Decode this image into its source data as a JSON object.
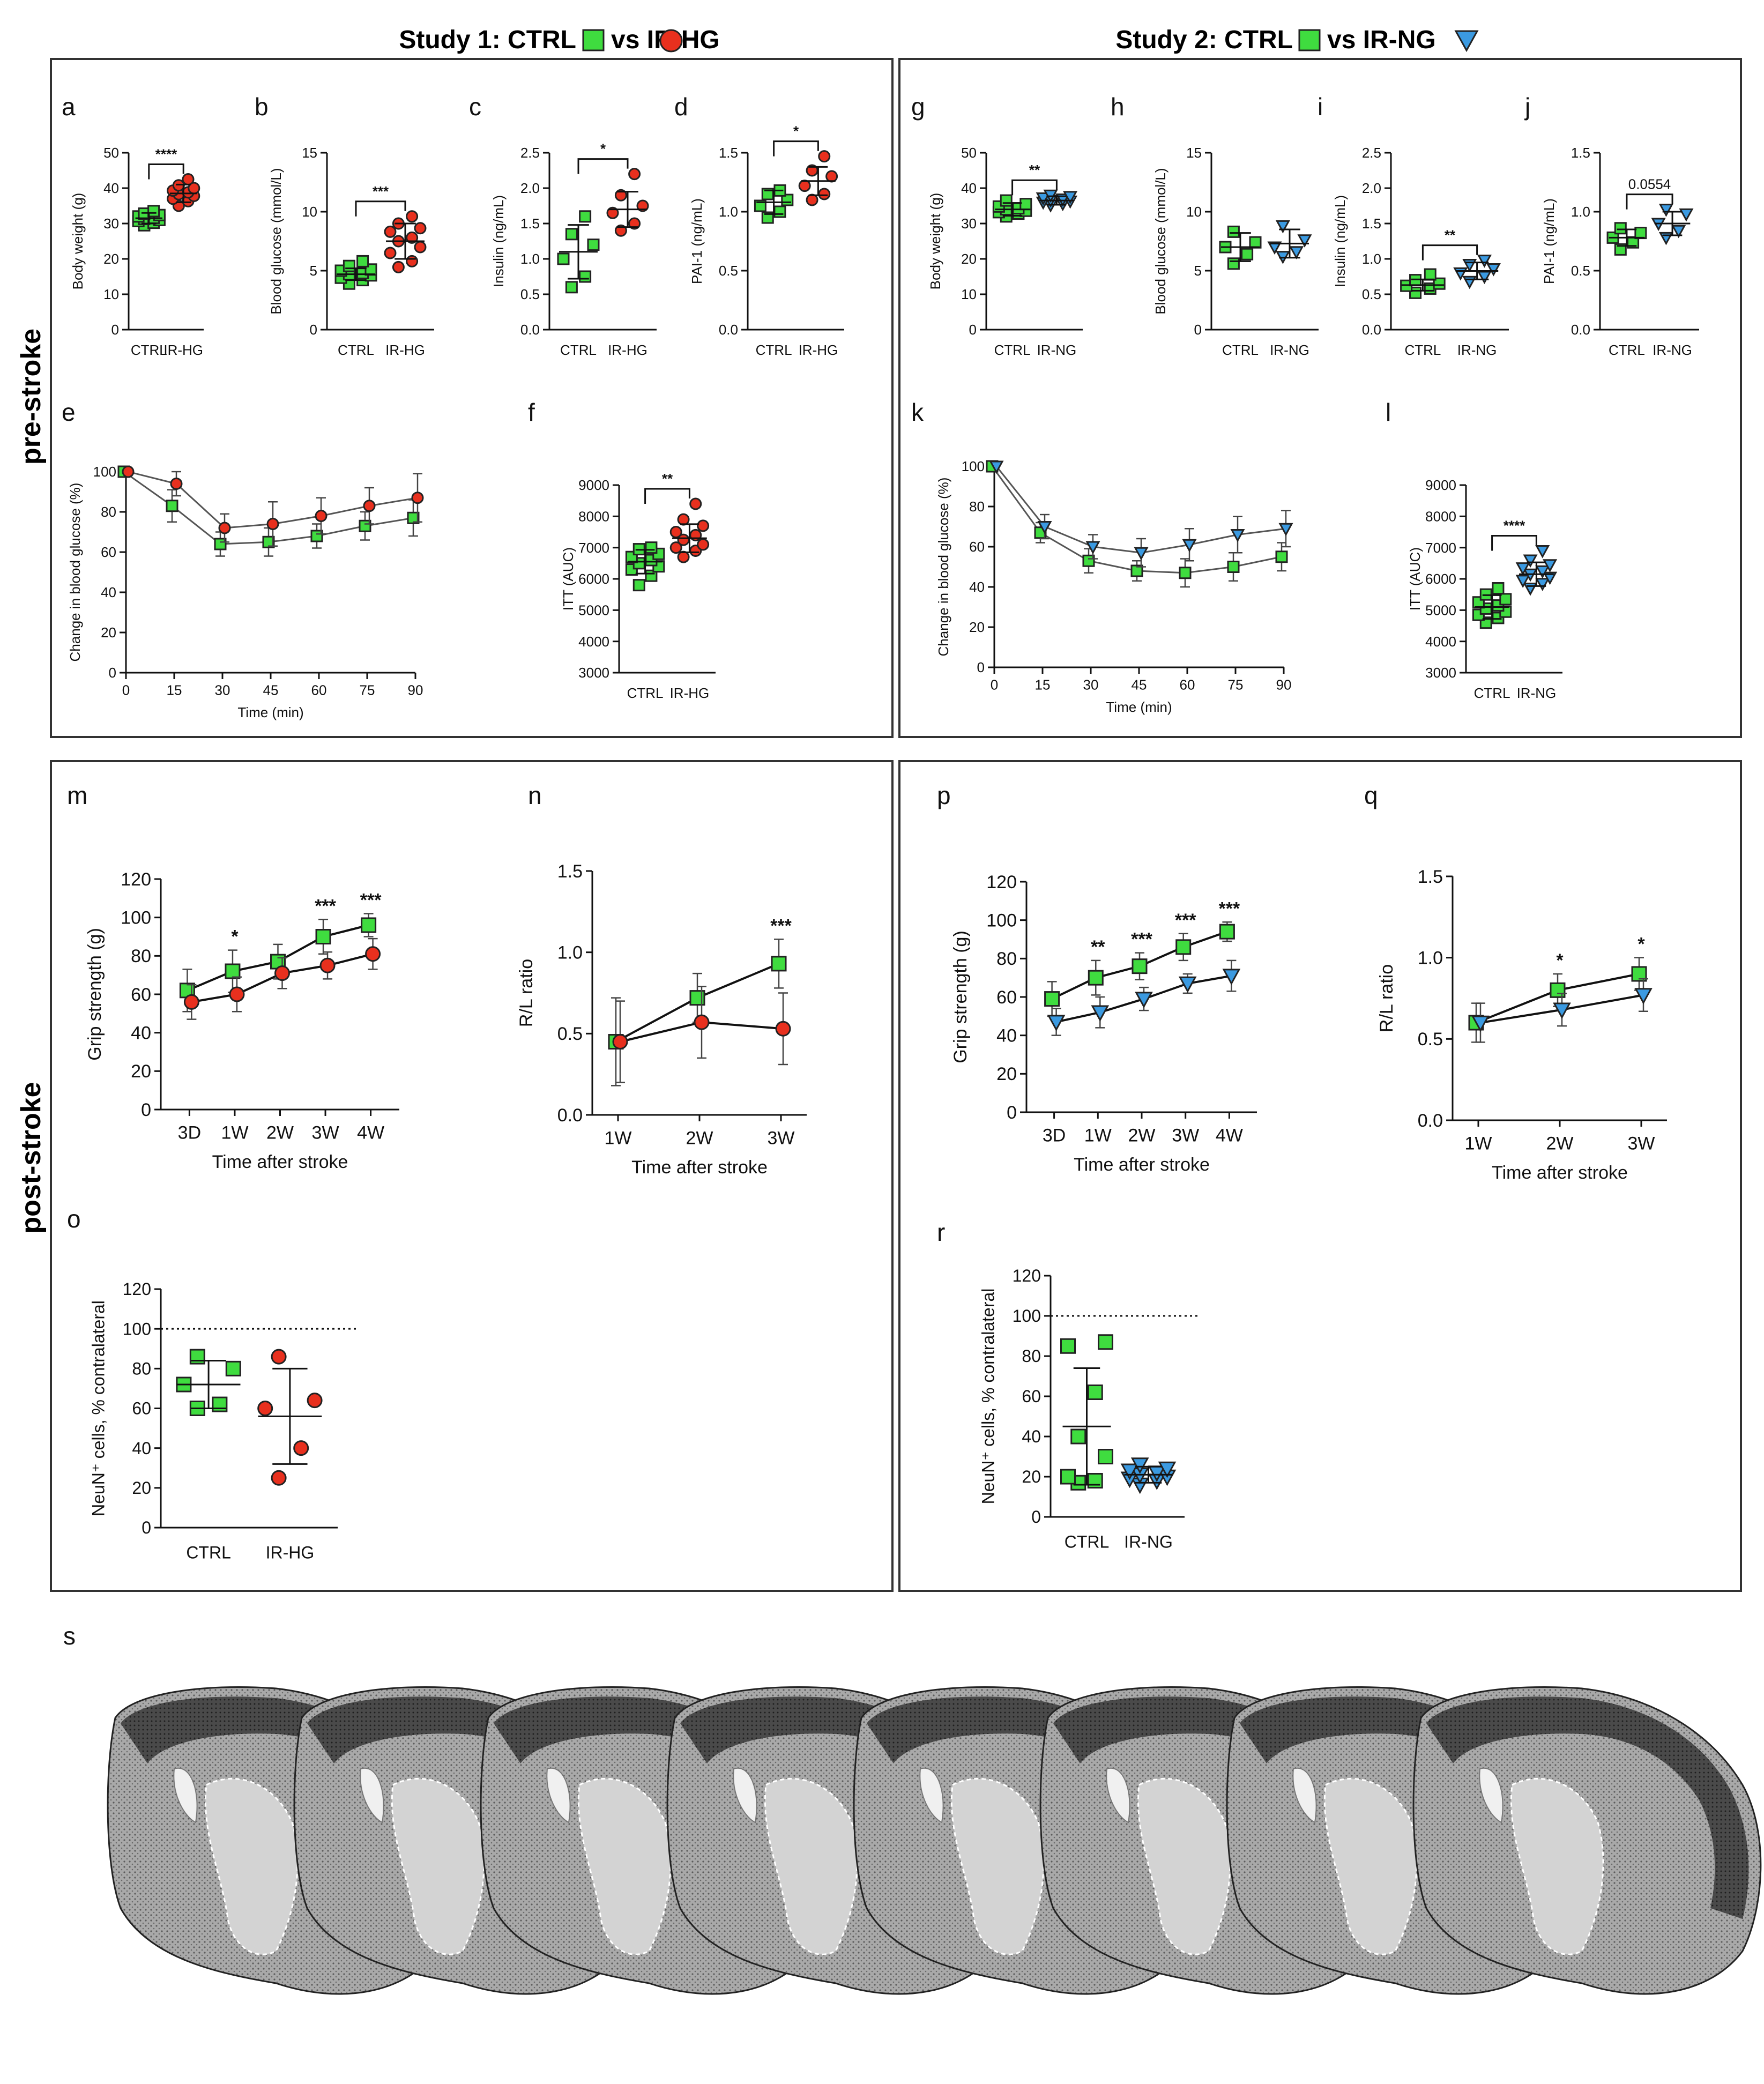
{
  "header": {
    "study1": "Study 1: CTRL",
    "study1_vs": "vs IR-HG",
    "study2": "Study 2: CTRL",
    "study2_vs": "vs IR-NG"
  },
  "row_labels": {
    "pre": "pre-stroke",
    "post": "post-stroke"
  },
  "colors": {
    "ctrl": "#3fdc3f",
    "irhg": "#e8301e",
    "irng": "#3b9ae1",
    "frame": "#333333"
  },
  "panel_s": {
    "label": "s"
  },
  "chart_data": [
    {
      "id": "a",
      "type": "scatter",
      "ylabel": "Body weight (g)",
      "ylim": [
        0,
        50
      ],
      "yticks": [
        0,
        10,
        20,
        30,
        40,
        50
      ],
      "categories": [
        "CTRL",
        "IR-HG"
      ],
      "markers": [
        "ctrl",
        "irhg"
      ],
      "groups": [
        {
          "mean": 31.5,
          "sd": 1.5,
          "points": [
            29.5,
            30.2,
            30.7,
            31,
            31.3,
            31.6,
            32,
            32.4,
            32.8,
            33.5
          ]
        },
        {
          "mean": 38.5,
          "sd": 2.5,
          "points": [
            35,
            36.3,
            37,
            37.8,
            38.3,
            38.8,
            39.3,
            40,
            40.8,
            42.5
          ]
        }
      ],
      "sig": "****"
    },
    {
      "id": "b",
      "type": "scatter",
      "ylabel": "Blood glucose (mmol/L)",
      "ylim": [
        0,
        15
      ],
      "yticks": [
        0,
        5,
        10,
        15
      ],
      "categories": [
        "CTRL",
        "IR-HG"
      ],
      "markers": [
        "ctrl",
        "irhg"
      ],
      "groups": [
        {
          "mean": 4.7,
          "sd": 0.5,
          "points": [
            3.9,
            4.2,
            4.4,
            4.6,
            4.7,
            4.8,
            5,
            5.1,
            5.4,
            5.8
          ]
        },
        {
          "mean": 7.5,
          "sd": 1.5,
          "points": [
            5.3,
            5.8,
            6.5,
            7,
            7.5,
            7.8,
            8.3,
            8.6,
            9,
            9.6
          ]
        }
      ],
      "sig": "***"
    },
    {
      "id": "c",
      "type": "scatter",
      "ylabel": "Insulin (ng/mL)",
      "ylim": [
        0,
        2.5
      ],
      "yticks": [
        0,
        0.5,
        1.0,
        1.5,
        2.0,
        2.5
      ],
      "categories": [
        "CTRL",
        "IR-HG"
      ],
      "markers": [
        "ctrl",
        "irhg"
      ],
      "groups": [
        {
          "mean": 1.1,
          "sd": 0.38,
          "points": [
            0.6,
            0.75,
            1.0,
            1.2,
            1.35,
            1.6
          ]
        },
        {
          "mean": 1.7,
          "sd": 0.25,
          "points": [
            1.4,
            1.5,
            1.65,
            1.75,
            1.9,
            2.2
          ]
        }
      ],
      "sig": "*"
    },
    {
      "id": "d",
      "type": "scatter",
      "ylabel": "PAI-1 (ng/mL)",
      "ylim": [
        0,
        1.5
      ],
      "yticks": [
        0,
        0.5,
        1.0,
        1.5
      ],
      "categories": [
        "CTRL",
        "IR-HG"
      ],
      "markers": [
        "ctrl",
        "irhg"
      ],
      "groups": [
        {
          "mean": 1.08,
          "sd": 0.1,
          "points": [
            0.95,
            1.0,
            1.05,
            1.1,
            1.15,
            1.18
          ]
        },
        {
          "mean": 1.26,
          "sd": 0.12,
          "points": [
            1.1,
            1.15,
            1.22,
            1.3,
            1.35,
            1.47
          ]
        }
      ],
      "sig": "*"
    },
    {
      "id": "g",
      "type": "scatter",
      "ylabel": "Body weight (g)",
      "ylim": [
        0,
        50
      ],
      "yticks": [
        0,
        10,
        20,
        30,
        40,
        50
      ],
      "categories": [
        "CTRL",
        "IR-NG"
      ],
      "markers": [
        "ctrl",
        "irng"
      ],
      "groups": [
        {
          "mean": 34,
          "sd": 1.8,
          "points": [
            32,
            32.8,
            33.2,
            33.6,
            34,
            34.3,
            34.8,
            35.5,
            36.5
          ]
        },
        {
          "mean": 36.5,
          "sd": 1.2,
          "points": [
            35.2,
            35.6,
            36,
            36.3,
            36.6,
            36.9,
            37.2,
            37.6,
            38
          ]
        }
      ],
      "sig": "**"
    },
    {
      "id": "h",
      "type": "scatter",
      "ylabel": "Blood glucose (mmol/L)",
      "ylim": [
        0,
        15
      ],
      "yticks": [
        0,
        5,
        10,
        15
      ],
      "categories": [
        "CTRL",
        "IR-NG"
      ],
      "markers": [
        "ctrl",
        "irng"
      ],
      "groups": [
        {
          "mean": 7.0,
          "sd": 1.2,
          "points": [
            5.6,
            6.4,
            7.0,
            7.4,
            8.3
          ]
        },
        {
          "mean": 7.3,
          "sd": 1.2,
          "points": [
            6.2,
            6.6,
            7.0,
            7.6,
            8.8
          ]
        }
      ],
      "sig": ""
    },
    {
      "id": "i",
      "type": "scatter",
      "ylabel": "Insulin (ng/mL)",
      "ylim": [
        0,
        2.5
      ],
      "yticks": [
        0,
        0.5,
        1.0,
        1.5,
        2.0,
        2.5
      ],
      "categories": [
        "CTRL",
        "IR-NG"
      ],
      "markers": [
        "ctrl",
        "irng"
      ],
      "groups": [
        {
          "mean": 0.63,
          "sd": 0.08,
          "points": [
            0.52,
            0.58,
            0.62,
            0.65,
            0.7,
            0.78
          ]
        },
        {
          "mean": 0.83,
          "sd": 0.12,
          "points": [
            0.68,
            0.75,
            0.8,
            0.86,
            0.92,
            0.98
          ]
        }
      ],
      "sig": "**"
    },
    {
      "id": "j",
      "type": "scatter",
      "ylabel": "PAI-1 (ng/mL)",
      "ylim": [
        0,
        1.5
      ],
      "yticks": [
        0,
        0.5,
        1.0,
        1.5
      ],
      "categories": [
        "CTRL",
        "IR-NG"
      ],
      "markers": [
        "ctrl",
        "irng"
      ],
      "groups": [
        {
          "mean": 0.78,
          "sd": 0.07,
          "points": [
            0.68,
            0.74,
            0.78,
            0.82,
            0.86
          ]
        },
        {
          "mean": 0.9,
          "sd": 0.1,
          "points": [
            0.78,
            0.84,
            0.9,
            0.98,
            1.02
          ]
        }
      ],
      "sig": "0.0554"
    },
    {
      "id": "f",
      "type": "scatter",
      "ylabel": "ITT (AUC)",
      "ylim": [
        3000,
        9000
      ],
      "yticks": [
        3000,
        4000,
        5000,
        6000,
        7000,
        8000,
        9000
      ],
      "categories": [
        "CTRL",
        "IR-HG"
      ],
      "markers": [
        "ctrl",
        "irhg"
      ],
      "groups": [
        {
          "mean": 6550,
          "sd": 380,
          "points": [
            5800,
            6100,
            6300,
            6400,
            6500,
            6600,
            6700,
            6800,
            6950,
            7000
          ]
        },
        {
          "mean": 7300,
          "sd": 450,
          "points": [
            6700,
            6900,
            7000,
            7100,
            7250,
            7400,
            7500,
            7700,
            7900,
            8400
          ]
        }
      ],
      "sig": "**"
    },
    {
      "id": "l",
      "type": "scatter",
      "ylabel": "ITT (AUC)",
      "ylim": [
        3000,
        9000
      ],
      "yticks": [
        3000,
        4000,
        5000,
        6000,
        7000,
        8000,
        9000
      ],
      "categories": [
        "CTRL",
        "IR-NG"
      ],
      "markers": [
        "ctrl",
        "irng"
      ],
      "groups": [
        {
          "mean": 5100,
          "sd": 380,
          "points": [
            4600,
            4750,
            4850,
            4950,
            5050,
            5150,
            5250,
            5350,
            5500,
            5700
          ]
        },
        {
          "mean": 6150,
          "sd": 380,
          "points": [
            5700,
            5850,
            5950,
            6050,
            6150,
            6250,
            6350,
            6450,
            6600,
            6900
          ]
        }
      ],
      "sig": "****"
    },
    {
      "id": "e",
      "type": "line",
      "ylabel": "Change in blood glucose (%)",
      "xlabel": "Time (min)",
      "x": [
        0,
        15,
        30,
        45,
        60,
        75,
        90
      ],
      "xlim": [
        0,
        90
      ],
      "ylim": [
        0,
        100
      ],
      "yticks": [
        0,
        20,
        40,
        60,
        80,
        100
      ],
      "series": [
        {
          "name": "CTRL",
          "marker": "ctrl",
          "values": [
            100,
            83,
            64,
            65,
            68,
            73,
            77
          ],
          "sd": [
            0,
            8,
            6,
            7,
            6,
            7,
            9
          ]
        },
        {
          "name": "IR-HG",
          "marker": "irhg",
          "values": [
            100,
            94,
            72,
            74,
            78,
            83,
            87
          ],
          "sd": [
            0,
            6,
            7,
            11,
            9,
            9,
            12
          ]
        }
      ],
      "sig": []
    },
    {
      "id": "k",
      "type": "line",
      "ylabel": "Change in blood glucose (%)",
      "xlabel": "Time (min)",
      "x": [
        0,
        15,
        30,
        45,
        60,
        75,
        90
      ],
      "xlim": [
        0,
        90
      ],
      "ylim": [
        0,
        100
      ],
      "yticks": [
        0,
        20,
        40,
        60,
        80,
        100
      ],
      "series": [
        {
          "name": "CTRL",
          "marker": "ctrl",
          "values": [
            100,
            67,
            53,
            48,
            47,
            50,
            55
          ],
          "sd": [
            0,
            5,
            6,
            5,
            7,
            7,
            7
          ]
        },
        {
          "name": "IR-NG",
          "marker": "irng",
          "values": [
            100,
            70,
            60,
            57,
            61,
            66,
            69
          ],
          "sd": [
            0,
            6,
            6,
            7,
            8,
            9,
            9
          ]
        }
      ],
      "sig": []
    },
    {
      "id": "m",
      "type": "line",
      "ylabel": "Grip strength (g)",
      "xlabel": "Time after stroke",
      "categories": [
        "3D",
        "1W",
        "2W",
        "3W",
        "4W"
      ],
      "ylim": [
        0,
        120
      ],
      "yticks": [
        0,
        20,
        40,
        60,
        80,
        100,
        120
      ],
      "series": [
        {
          "name": "CTRL",
          "marker": "ctrl",
          "values": [
            62,
            72,
            77,
            90,
            96
          ],
          "sd": [
            11,
            11,
            9,
            9,
            6
          ]
        },
        {
          "name": "IR-HG",
          "marker": "irhg",
          "values": [
            56,
            60,
            71,
            75,
            81
          ],
          "sd": [
            9,
            9,
            8,
            7,
            8
          ]
        }
      ],
      "sig": [
        "",
        "*",
        "",
        "***",
        "***"
      ]
    },
    {
      "id": "n",
      "type": "line",
      "ylabel": "R/L ratio",
      "xlabel": "Time after stroke",
      "categories": [
        "1W",
        "2W",
        "3W"
      ],
      "ylim": [
        0,
        1.5
      ],
      "yticks": [
        0.0,
        0.5,
        1.0,
        1.5
      ],
      "series": [
        {
          "name": "CTRL",
          "marker": "ctrl",
          "values": [
            0.45,
            0.72,
            0.93
          ],
          "sd": [
            0.27,
            0.15,
            0.15
          ]
        },
        {
          "name": "IR-HG",
          "marker": "irhg",
          "values": [
            0.45,
            0.57,
            0.53
          ],
          "sd": [
            0.25,
            0.22,
            0.22
          ]
        }
      ],
      "sig": [
        "",
        "",
        "***"
      ]
    },
    {
      "id": "p",
      "type": "line",
      "ylabel": "Grip strength (g)",
      "xlabel": "Time after stroke",
      "categories": [
        "3D",
        "1W",
        "2W",
        "3W",
        "4W"
      ],
      "ylim": [
        0,
        120
      ],
      "yticks": [
        0,
        20,
        40,
        60,
        80,
        100,
        120
      ],
      "series": [
        {
          "name": "CTRL",
          "marker": "ctrl",
          "values": [
            59,
            70,
            76,
            86,
            94
          ],
          "sd": [
            9,
            9,
            7,
            7,
            5
          ]
        },
        {
          "name": "IR-NG",
          "marker": "irng",
          "values": [
            47,
            52,
            59,
            67,
            71
          ],
          "sd": [
            7,
            8,
            6,
            5,
            8
          ]
        }
      ],
      "sig": [
        "",
        "**",
        "***",
        "***",
        "***"
      ]
    },
    {
      "id": "q",
      "type": "line",
      "ylabel": "R/L ratio",
      "xlabel": "Time after stroke",
      "categories": [
        "1W",
        "2W",
        "3W"
      ],
      "ylim": [
        0,
        1.5
      ],
      "yticks": [
        0.0,
        0.5,
        1.0,
        1.5
      ],
      "series": [
        {
          "name": "CTRL",
          "marker": "ctrl",
          "values": [
            0.6,
            0.8,
            0.9
          ],
          "sd": [
            0.12,
            0.1,
            0.1
          ]
        },
        {
          "name": "IR-NG",
          "marker": "irng",
          "values": [
            0.6,
            0.68,
            0.77
          ],
          "sd": [
            0.12,
            0.1,
            0.1
          ]
        }
      ],
      "sig": [
        "",
        "*",
        "*"
      ]
    },
    {
      "id": "o",
      "type": "scatter",
      "ylabel": "NeuN⁺ cells, % contralateral",
      "ylim": [
        0,
        120
      ],
      "yticks": [
        0,
        20,
        40,
        60,
        80,
        100,
        120
      ],
      "refline": 100,
      "categories": [
        "CTRL",
        "IR-HG"
      ],
      "markers": [
        "ctrl",
        "irhg"
      ],
      "groups": [
        {
          "mean": 72,
          "sd": 12,
          "points": [
            60,
            62,
            72,
            80,
            86
          ]
        },
        {
          "mean": 56,
          "sd": 24,
          "points": [
            25,
            40,
            60,
            64,
            86
          ]
        }
      ],
      "sig": ""
    },
    {
      "id": "r",
      "type": "scatter",
      "ylabel": "NeuN⁺ cells, % contralateral",
      "ylim": [
        0,
        120
      ],
      "yticks": [
        0,
        20,
        40,
        60,
        80,
        100,
        120
      ],
      "refline": 100,
      "categories": [
        "CTRL",
        "IR-NG"
      ],
      "markers": [
        "ctrl",
        "irng"
      ],
      "groups": [
        {
          "mean": 45,
          "sd": 29,
          "points": [
            17,
            18,
            20,
            30,
            40,
            62,
            85,
            87
          ]
        },
        {
          "mean": 21,
          "sd": 4,
          "points": [
            16,
            18,
            19,
            20,
            21,
            22,
            23,
            24,
            26
          ]
        }
      ],
      "sig": ""
    }
  ]
}
